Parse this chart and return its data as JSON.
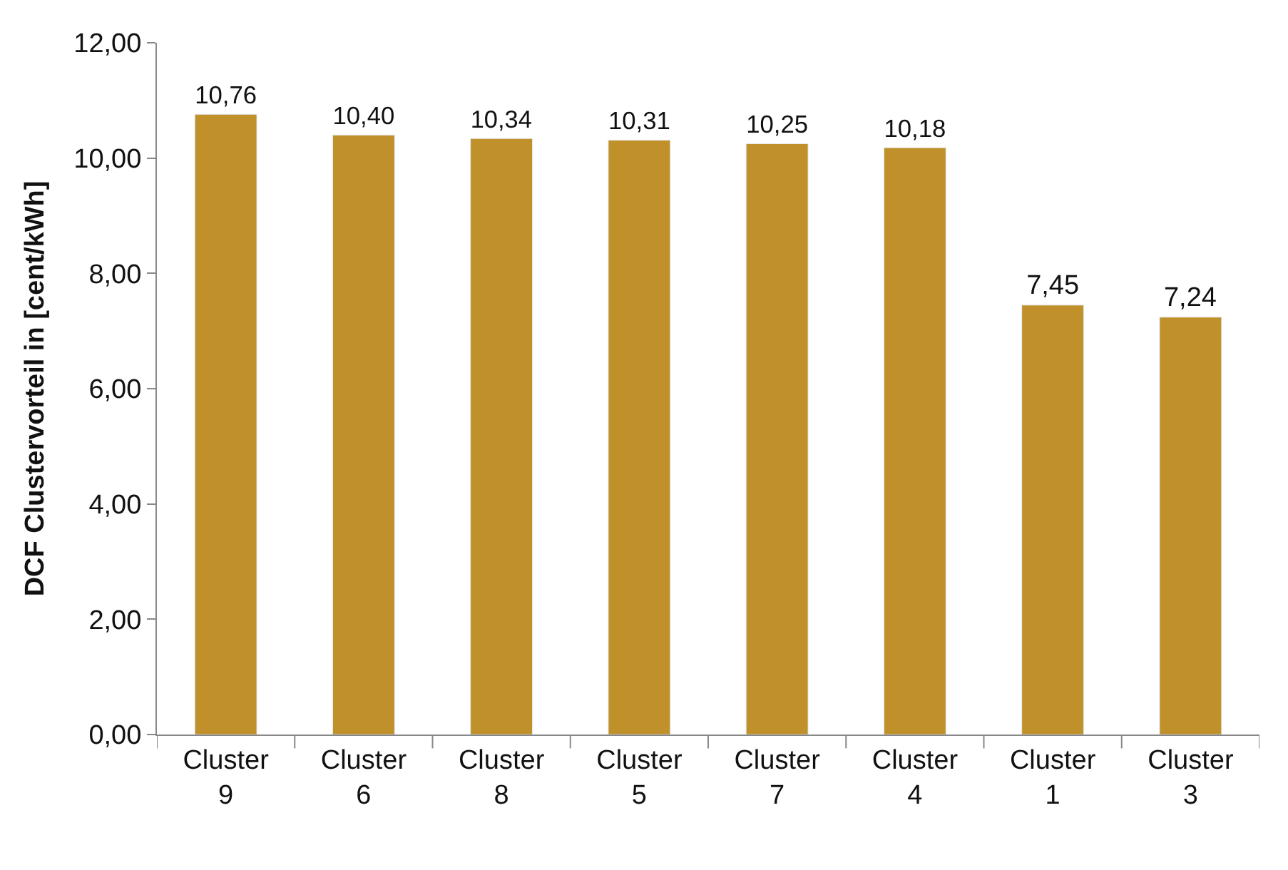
{
  "chart_data": {
    "type": "bar",
    "ylabel": "DCF Clustervorteil in [cent/kWh]",
    "categories": [
      "Cluster 9",
      "Cluster 6",
      "Cluster 8",
      "Cluster 5",
      "Cluster 7",
      "Cluster 4",
      "Cluster 1",
      "Cluster 3"
    ],
    "values": [
      10.76,
      10.4,
      10.34,
      10.31,
      10.25,
      10.18,
      7.45,
      7.24
    ],
    "value_labels": [
      "10,76",
      "10,40",
      "10,34",
      "10,31",
      "10,25",
      "10,18",
      "7,45",
      "7,24"
    ],
    "color": "#c0902a",
    "ylim": [
      0,
      12
    ],
    "yticks": [
      {
        "value": 0,
        "label": "0,00"
      },
      {
        "value": 2,
        "label": "2,00"
      },
      {
        "value": 4,
        "label": "4,00"
      },
      {
        "value": 6,
        "label": "6,00"
      },
      {
        "value": 8,
        "label": "8,00"
      },
      {
        "value": 10,
        "label": "10,00"
      },
      {
        "value": 12,
        "label": "12,00"
      }
    ]
  }
}
